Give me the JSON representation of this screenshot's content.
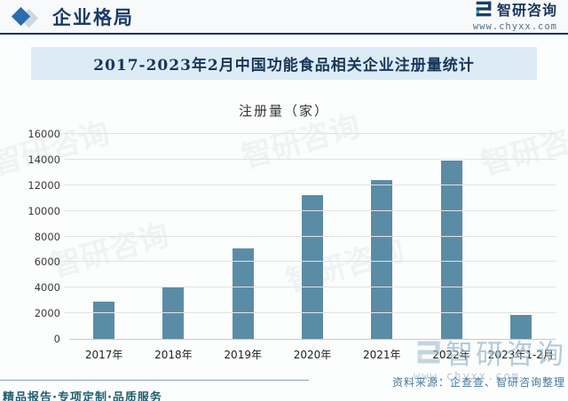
{
  "header": {
    "section_title": "企业格局",
    "brand_name": "智研咨询",
    "brand_url": "www.chyxx.com"
  },
  "banner": {
    "title": "2017-2023年2月中国功能食品相关企业注册量统计"
  },
  "chart_data": {
    "type": "bar",
    "title": "注册量（家）",
    "categories": [
      "2017年",
      "2018年",
      "2019年",
      "2020年",
      "2021年",
      "2022年",
      "2023年1-2月"
    ],
    "values": [
      2900,
      4100,
      7100,
      11200,
      12400,
      13900,
      1900
    ],
    "ylim": [
      0,
      16000
    ],
    "yticks": [
      0,
      2000,
      4000,
      6000,
      8000,
      10000,
      12000,
      14000,
      16000
    ],
    "xlabel": "",
    "ylabel": "注册量（家）",
    "grid": true,
    "legend": "none",
    "bar_color": "#5b8ca6"
  },
  "footer": {
    "source_text": "资料来源：企查查、智研咨询整理",
    "services_text": "精品报告·专项定制·品质服务"
  },
  "watermark": {
    "brand": "智研咨询",
    "url": "www.chyxx.com"
  },
  "colors": {
    "accent_navy": "#17365c",
    "banner_bg": "#dcebf5",
    "bar": "#5b8ca6",
    "diamond_blue": "#2a6cb0",
    "source_blue": "#47799c",
    "services_teal": "#215e72"
  }
}
